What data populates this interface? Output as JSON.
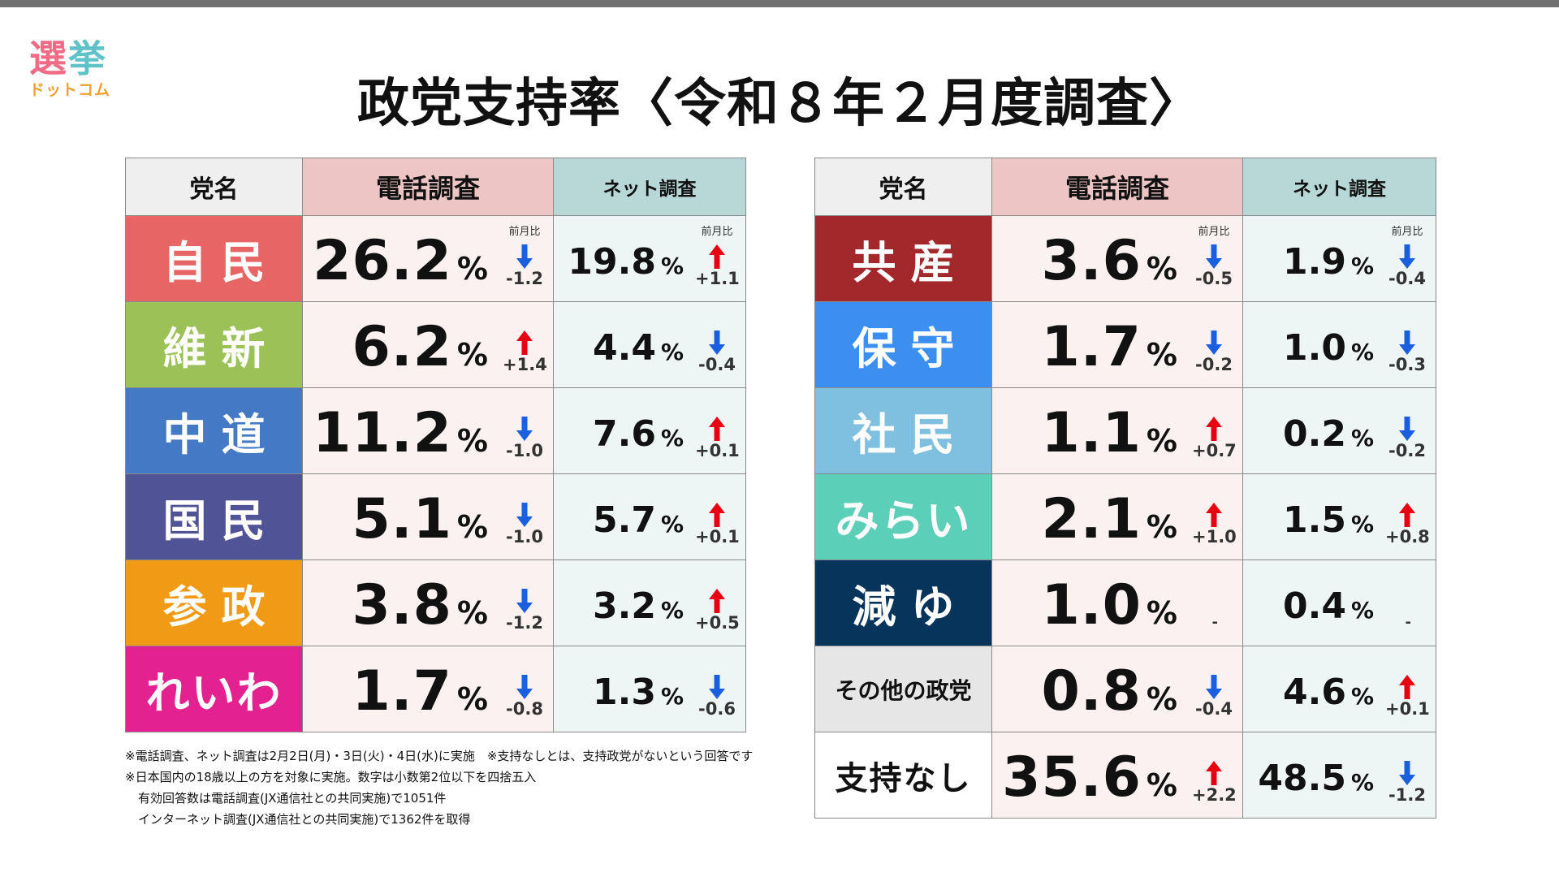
{
  "logo": {
    "line1_a": "選",
    "line1_b": "挙",
    "line2": "ドットコム"
  },
  "colors": {
    "logo_sen": "#f06b86",
    "logo_kyo": "#5fc2c8",
    "logo_sub": "#f0a030",
    "up": "#e60012",
    "down": "#1a5fe0"
  },
  "title": "政党支持率〈令和８年２月度調査〉",
  "headers": {
    "party": "党名",
    "phone": "電話調査",
    "net": "ネット調査"
  },
  "prev_label": "前月比",
  "unit": "%",
  "left_parties": [
    {
      "name": "自民",
      "color": "#e86566",
      "phone": "26.2",
      "phone_change": "-1.2",
      "phone_dir": "down",
      "net": "19.8",
      "net_change": "+1.1",
      "net_dir": "up"
    },
    {
      "name": "維新",
      "color": "#9cc257",
      "phone": "6.2",
      "phone_change": "+1.4",
      "phone_dir": "up",
      "net": "4.4",
      "net_change": "-0.4",
      "net_dir": "down"
    },
    {
      "name": "中道",
      "color": "#4479c5",
      "phone": "11.2",
      "phone_change": "-1.0",
      "phone_dir": "down",
      "net": "7.6",
      "net_change": "+0.1",
      "net_dir": "up"
    },
    {
      "name": "国民",
      "color": "#505497",
      "phone": "5.1",
      "phone_change": "-1.0",
      "phone_dir": "down",
      "net": "5.7",
      "net_change": "+0.1",
      "net_dir": "up"
    },
    {
      "name": "参政",
      "color": "#f19a15",
      "phone": "3.8",
      "phone_change": "-1.2",
      "phone_dir": "down",
      "net": "3.2",
      "net_change": "+0.5",
      "net_dir": "up"
    },
    {
      "name": "れいわ",
      "color": "#e4228f",
      "phone": "1.7",
      "phone_change": "-0.8",
      "phone_dir": "down",
      "net": "1.3",
      "net_change": "-0.6",
      "net_dir": "down"
    }
  ],
  "right_parties": [
    {
      "name": "共産",
      "color": "#a3282c",
      "phone": "3.6",
      "phone_change": "-0.5",
      "phone_dir": "down",
      "net": "1.9",
      "net_change": "-0.4",
      "net_dir": "down"
    },
    {
      "name": "保守",
      "color": "#3a8ff0",
      "phone": "1.7",
      "phone_change": "-0.2",
      "phone_dir": "down",
      "net": "1.0",
      "net_change": "-0.3",
      "net_dir": "down"
    },
    {
      "name": "社民",
      "color": "#7fbfe0",
      "phone": "1.1",
      "phone_change": "+0.7",
      "phone_dir": "up",
      "net": "0.2",
      "net_change": "-0.2",
      "net_dir": "down"
    },
    {
      "name": "みらい",
      "color": "#5ccfb9",
      "phone": "2.1",
      "phone_change": "+1.0",
      "phone_dir": "up",
      "net": "1.5",
      "net_change": "+0.8",
      "net_dir": "up"
    },
    {
      "name": "減ゆ",
      "color": "#07345b",
      "phone": "1.0",
      "phone_change": "",
      "phone_dir": "none",
      "net": "0.4",
      "net_change": "",
      "net_dir": "none"
    },
    {
      "name": "その他の政党",
      "color": "#e6e6e6",
      "phone": "0.8",
      "phone_change": "-0.4",
      "phone_dir": "down",
      "net": "4.6",
      "net_change": "+0.1",
      "net_dir": "up"
    },
    {
      "name": "支持なし",
      "color": "#ffffff",
      "phone": "35.6",
      "phone_change": "+2.2",
      "phone_dir": "up",
      "net": "48.5",
      "net_change": "-1.2",
      "net_dir": "down"
    }
  ],
  "notes": [
    "※電話調査、ネット調査は2月2日(月)・3日(火)・4日(水)に実施　※支持なしとは、支持政党がないという回答です",
    "※日本国内の18歳以上の方を対象に実施。数字は小数第2位以下を四捨五入",
    "有効回答数は電話調査(JX通信社との共同実施)で1051件",
    "インターネット調査(JX通信社との共同実施)で1362件を取得"
  ],
  "chart_data": {
    "type": "table",
    "title": "政党支持率〈令和８年２月度調査〉",
    "columns": [
      "党名",
      "電話調査",
      "前月比",
      "ネット調査",
      "前月比"
    ],
    "categories": [
      "自民",
      "維新",
      "中道",
      "国民",
      "参政",
      "れいわ",
      "共産",
      "保守",
      "社民",
      "みらい",
      "減ゆ",
      "その他の政党",
      "支持なし"
    ],
    "series": [
      {
        "name": "電話調査",
        "values": [
          26.2,
          6.2,
          11.2,
          5.1,
          3.8,
          1.7,
          3.6,
          1.7,
          1.1,
          2.1,
          1.0,
          0.8,
          35.6
        ]
      },
      {
        "name": "ネット調査",
        "values": [
          19.8,
          4.4,
          7.6,
          5.7,
          3.2,
          1.3,
          1.9,
          1.0,
          0.2,
          1.5,
          0.4,
          4.6,
          48.5
        ]
      }
    ]
  }
}
